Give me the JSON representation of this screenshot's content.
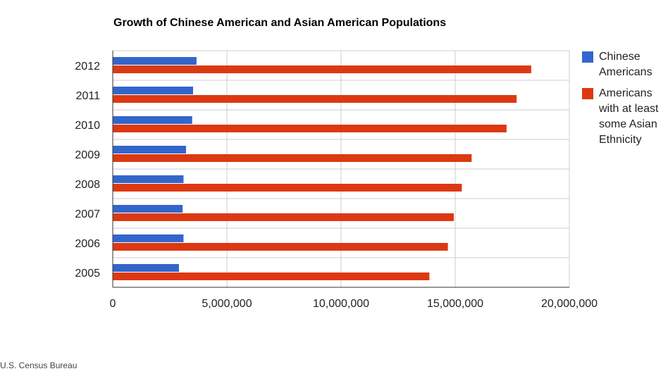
{
  "chart_data": {
    "type": "bar",
    "orientation": "horizontal",
    "title": "Growth of Chinese American and Asian American Populations",
    "categories": [
      "2012",
      "2011",
      "2010",
      "2009",
      "2008",
      "2007",
      "2006",
      "2005"
    ],
    "series": [
      {
        "name": "Chinese Americans",
        "color": "#3366cc",
        "values": [
          3670000,
          3520000,
          3480000,
          3210000,
          3100000,
          3060000,
          3100000,
          2900000
        ]
      },
      {
        "name": "Americans with at least some Asian Ethnicity",
        "color": "#dc3912",
        "values": [
          18330000,
          17690000,
          17250000,
          15720000,
          15290000,
          14940000,
          14680000,
          13870000
        ]
      }
    ],
    "xlim": [
      0,
      20000000
    ],
    "xticks": [
      "0",
      "5,000,000",
      "10,000,000",
      "15,000,000",
      "20,000,000"
    ],
    "grid": true,
    "legend": "right"
  },
  "source": "U.S. Census Bureau"
}
